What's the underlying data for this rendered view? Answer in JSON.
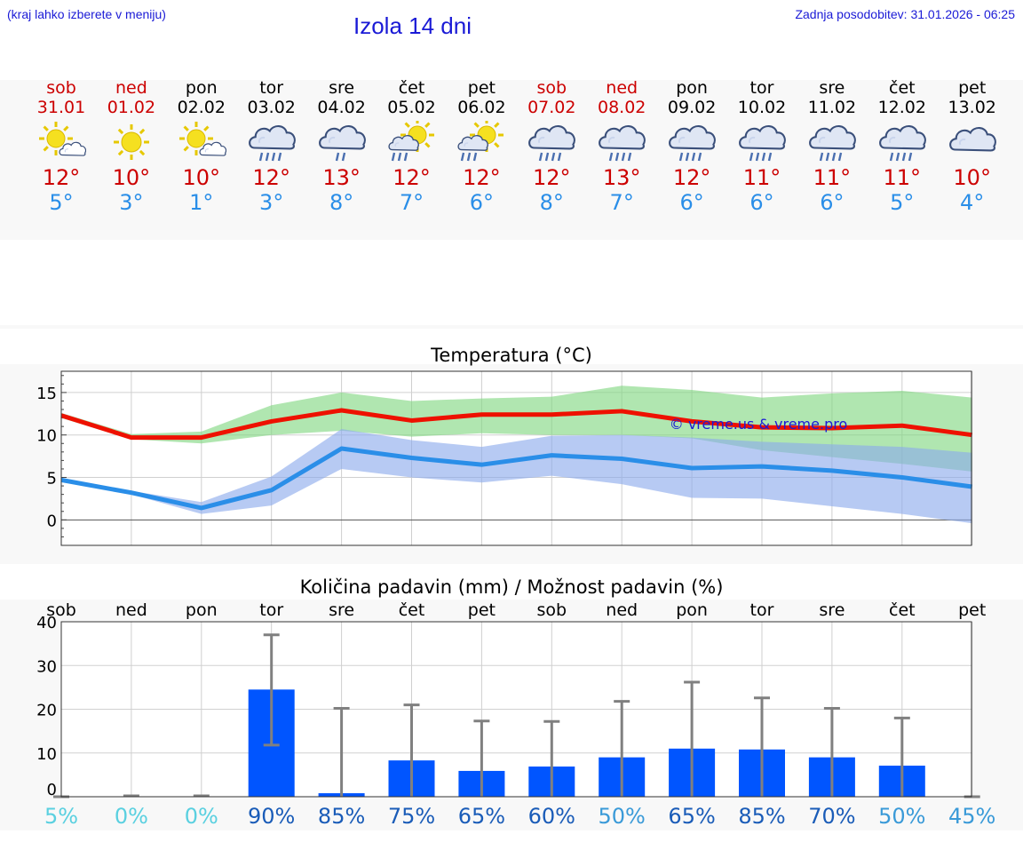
{
  "header": {
    "hint": "(kraj lahko izberete v meniju)",
    "title": "Izola 14 dni",
    "updated": "Zadnja posodobitev: 31.01.2026 - 06:25"
  },
  "days": [
    {
      "name": "sob",
      "date": "31.01",
      "weekend": true,
      "icon": "sun-cloud-icon",
      "tmax": "12°",
      "tmin": "5°"
    },
    {
      "name": "ned",
      "date": "01.02",
      "weekend": true,
      "icon": "sun-icon",
      "tmax": "10°",
      "tmin": "3°"
    },
    {
      "name": "pon",
      "date": "02.02",
      "weekend": false,
      "icon": "sun-cloud-icon",
      "tmax": "10°",
      "tmin": "1°"
    },
    {
      "name": "tor",
      "date": "03.02",
      "weekend": false,
      "icon": "rain-cloud-icon",
      "tmax": "12°",
      "tmin": "3°"
    },
    {
      "name": "sre",
      "date": "04.02",
      "weekend": false,
      "icon": "light-rain-cloud-icon",
      "tmax": "13°",
      "tmin": "8°"
    },
    {
      "name": "čet",
      "date": "05.02",
      "weekend": false,
      "icon": "sun-rain-icon",
      "tmax": "12°",
      "tmin": "7°"
    },
    {
      "name": "pet",
      "date": "06.02",
      "weekend": false,
      "icon": "sun-rain-icon",
      "tmax": "12°",
      "tmin": "6°"
    },
    {
      "name": "sob",
      "date": "07.02",
      "weekend": true,
      "icon": "rain-cloud-icon",
      "tmax": "12°",
      "tmin": "8°"
    },
    {
      "name": "ned",
      "date": "08.02",
      "weekend": true,
      "icon": "rain-cloud-icon",
      "tmax": "13°",
      "tmin": "7°"
    },
    {
      "name": "pon",
      "date": "09.02",
      "weekend": false,
      "icon": "rain-cloud-icon",
      "tmax": "12°",
      "tmin": "6°"
    },
    {
      "name": "tor",
      "date": "10.02",
      "weekend": false,
      "icon": "rain-cloud-icon",
      "tmax": "11°",
      "tmin": "6°"
    },
    {
      "name": "sre",
      "date": "11.02",
      "weekend": false,
      "icon": "rain-cloud-icon",
      "tmax": "11°",
      "tmin": "6°"
    },
    {
      "name": "čet",
      "date": "12.02",
      "weekend": false,
      "icon": "rain-cloud-icon",
      "tmax": "11°",
      "tmin": "5°"
    },
    {
      "name": "pet",
      "date": "13.02",
      "weekend": false,
      "icon": "cloud-icon",
      "tmax": "10°",
      "tmin": "4°"
    }
  ],
  "chart_data": [
    {
      "type": "line",
      "title": "Temperatura (°C)",
      "watermark": "© vreme.us & vreme.pro",
      "ylim": [
        -3,
        17.5
      ],
      "yticks": [
        0,
        5,
        10,
        15
      ],
      "grid": true,
      "series": [
        {
          "name": "max",
          "color": "#ee1100",
          "values": [
            12.3,
            9.7,
            9.7,
            11.6,
            12.9,
            11.7,
            12.4,
            12.4,
            12.8,
            11.6,
            10.9,
            10.8,
            11.1,
            10.0
          ],
          "band_low": [
            12.0,
            9.5,
            9.0,
            10.0,
            10.5,
            9.8,
            10.2,
            10.0,
            10.0,
            9.6,
            8.2,
            7.4,
            6.6,
            5.7
          ],
          "band_high": [
            12.6,
            10.1,
            10.4,
            13.5,
            15.0,
            14.0,
            14.3,
            14.5,
            15.8,
            15.3,
            14.4,
            14.9,
            15.2,
            14.4
          ],
          "band_color": "#7fd67f"
        },
        {
          "name": "min",
          "color": "#2a8ee8",
          "values": [
            4.7,
            3.2,
            1.4,
            3.5,
            8.4,
            7.3,
            6.5,
            7.6,
            7.2,
            6.1,
            6.3,
            5.8,
            5.0,
            3.9
          ],
          "band_low": [
            4.5,
            3.0,
            0.7,
            1.7,
            6.0,
            5.0,
            4.4,
            5.2,
            4.2,
            2.6,
            2.5,
            1.6,
            0.7,
            -0.4
          ],
          "band_high": [
            4.9,
            3.4,
            2.1,
            5.1,
            10.7,
            9.4,
            8.6,
            9.9,
            10.0,
            9.7,
            9.2,
            8.9,
            8.6,
            7.9
          ],
          "band_color": "#8aa9ec"
        }
      ]
    },
    {
      "type": "bar",
      "title": "Količina padavin (mm) / Možnost padavin (%)",
      "categories": [
        "sob",
        "ned",
        "pon",
        "tor",
        "sre",
        "čet",
        "pet",
        "sob",
        "ned",
        "pon",
        "tor",
        "sre",
        "čet",
        "pet"
      ],
      "values": [
        0,
        0,
        0,
        24.5,
        0.8,
        8.3,
        5.9,
        6.9,
        9.0,
        11.0,
        10.8,
        9.0,
        7.1,
        0
      ],
      "err_high": [
        0,
        0.2,
        0.2,
        37.0,
        20.2,
        21.0,
        17.3,
        17.2,
        21.8,
        26.2,
        22.6,
        20.2,
        18.0,
        0
      ],
      "err_low": [
        0,
        0,
        0,
        11.8,
        0,
        0,
        0,
        0,
        0,
        0,
        0,
        0,
        0,
        0
      ],
      "ylim": [
        0,
        40
      ],
      "yticks": [
        0,
        10,
        20,
        30,
        40
      ],
      "bar_color": "#0055ff",
      "probability": [
        "5%",
        "0%",
        "0%",
        "90%",
        "85%",
        "75%",
        "65%",
        "60%",
        "50%",
        "65%",
        "85%",
        "70%",
        "50%",
        "45%"
      ],
      "probability_values": [
        5,
        0,
        0,
        90,
        85,
        75,
        65,
        60,
        50,
        65,
        85,
        70,
        50,
        45
      ]
    }
  ]
}
